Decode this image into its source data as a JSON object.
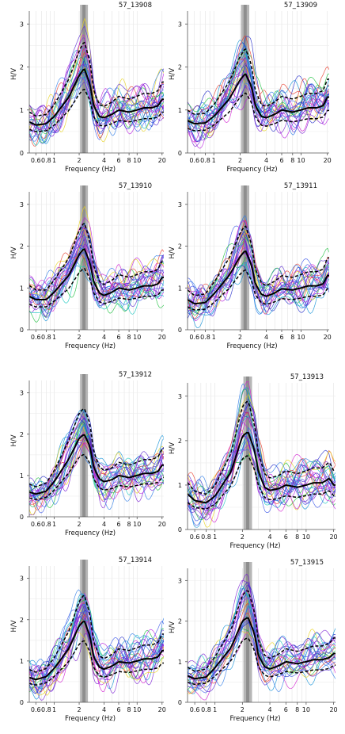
{
  "figure": {
    "panel_count": 8,
    "layout": "4 rows x 2 columns"
  },
  "chart_data": [
    {
      "type": "line",
      "title": "57_13908",
      "xlabel": "Frequency (Hz)",
      "ylabel": "H/V",
      "x_scale": "log",
      "xlim": [
        0.5,
        21
      ],
      "ylim": [
        0,
        3.3
      ],
      "x_tick_labels": [
        "0.6",
        "0.8",
        "1",
        "2",
        "4",
        "6",
        "8",
        "10",
        "20"
      ],
      "y_tick_labels": [
        "0",
        "1",
        "2",
        "3"
      ],
      "grid": true,
      "peak_band_hz": [
        2.05,
        2.55
      ],
      "x": [
        0.5,
        0.6,
        0.8,
        1,
        1.5,
        2,
        2.3,
        2.7,
        3,
        3.5,
        4,
        5,
        6,
        8,
        10,
        12,
        15,
        18,
        20
      ],
      "series": [
        {
          "values": [
            0.72,
            0.65,
            0.68,
            0.85,
            1.3,
            1.8,
            1.97,
            1.6,
            1.1,
            0.85,
            0.82,
            0.9,
            1.0,
            0.95,
            1.0,
            1.05,
            1.05,
            1.1,
            1.25
          ]
        }
      ]
    },
    {
      "type": "line",
      "title": "57_13909",
      "xlabel": "Frequency (Hz)",
      "ylabel": "H/V",
      "x_scale": "log",
      "xlim": [
        0.5,
        21
      ],
      "ylim": [
        0,
        3.3
      ],
      "x_tick_labels": [
        "0.6",
        "0.8",
        "1",
        "2",
        "4",
        "6",
        "8",
        "10",
        "20"
      ],
      "y_tick_labels": [
        "0",
        "1",
        "2",
        "3"
      ],
      "grid": true,
      "peak_band_hz": [
        2.05,
        2.55
      ],
      "x": [
        0.5,
        0.6,
        0.8,
        1,
        1.5,
        2,
        2.3,
        2.7,
        3,
        3.5,
        4,
        5,
        6,
        8,
        10,
        12,
        15,
        18,
        20
      ],
      "series": [
        {
          "values": [
            0.75,
            0.68,
            0.7,
            0.85,
            1.25,
            1.7,
            1.85,
            1.55,
            1.1,
            0.85,
            0.82,
            0.9,
            1.0,
            0.95,
            1.0,
            1.05,
            1.05,
            1.1,
            1.3
          ]
        }
      ]
    },
    {
      "type": "line",
      "title": "57_13910",
      "xlabel": "Frequency (Hz)",
      "ylabel": "H/V",
      "x_scale": "log",
      "xlim": [
        0.5,
        21
      ],
      "ylim": [
        0,
        3.3
      ],
      "x_tick_labels": [
        "0.6",
        "0.8",
        "1",
        "2",
        "4",
        "6",
        "8",
        "10",
        "20"
      ],
      "y_tick_labels": [
        "0",
        "1",
        "2",
        "3"
      ],
      "grid": true,
      "peak_band_hz": [
        2.05,
        2.55
      ],
      "x": [
        0.5,
        0.6,
        0.8,
        1,
        1.5,
        2,
        2.3,
        2.7,
        3,
        3.5,
        4,
        5,
        6,
        8,
        10,
        12,
        15,
        18,
        20
      ],
      "series": [
        {
          "values": [
            0.8,
            0.72,
            0.72,
            0.9,
            1.3,
            1.8,
            1.95,
            1.6,
            1.15,
            0.88,
            0.82,
            0.9,
            1.0,
            0.95,
            1.0,
            1.05,
            1.05,
            1.1,
            1.25
          ]
        }
      ]
    },
    {
      "type": "line",
      "title": "57_13911",
      "xlabel": "Frequency (Hz)",
      "ylabel": "H/V",
      "x_scale": "log",
      "xlim": [
        0.5,
        21
      ],
      "ylim": [
        0,
        3.3
      ],
      "x_tick_labels": [
        "0.6",
        "0.8",
        "1",
        "2",
        "4",
        "6",
        "8",
        "10",
        "20"
      ],
      "y_tick_labels": [
        "0",
        "1",
        "2",
        "3"
      ],
      "grid": true,
      "peak_band_hz": [
        2.05,
        2.55
      ],
      "x": [
        0.5,
        0.6,
        0.8,
        1,
        1.5,
        2,
        2.3,
        2.7,
        3,
        3.5,
        4,
        5,
        6,
        8,
        10,
        12,
        15,
        18,
        20
      ],
      "series": [
        {
          "values": [
            0.72,
            0.62,
            0.65,
            0.85,
            1.3,
            1.75,
            1.9,
            1.55,
            1.1,
            0.85,
            0.8,
            0.88,
            0.98,
            0.95,
            1.0,
            1.05,
            1.05,
            1.1,
            1.3
          ]
        }
      ]
    },
    {
      "type": "line",
      "title": "57_13912",
      "xlabel": "Frequency (Hz)",
      "ylabel": "H/V",
      "x_scale": "log",
      "xlim": [
        0.5,
        21
      ],
      "ylim": [
        0,
        3.3
      ],
      "x_tick_labels": [
        "0.6",
        "0.8",
        "1",
        "2",
        "4",
        "6",
        "8",
        "10",
        "20"
      ],
      "y_tick_labels": [
        "0",
        "1",
        "2",
        "3"
      ],
      "grid": true,
      "peak_band_hz": [
        2.05,
        2.55
      ],
      "x": [
        0.5,
        0.6,
        0.8,
        1,
        1.5,
        2,
        2.3,
        2.7,
        3,
        3.5,
        4,
        5,
        6,
        8,
        10,
        12,
        15,
        18,
        20
      ],
      "series": [
        {
          "values": [
            0.6,
            0.55,
            0.62,
            0.85,
            1.4,
            1.9,
            2.0,
            1.7,
            1.2,
            0.92,
            0.85,
            0.9,
            1.0,
            0.95,
            1.0,
            1.05,
            1.05,
            1.1,
            1.25
          ]
        }
      ]
    },
    {
      "type": "line",
      "title": "57_13913",
      "xlabel": "Frequency (Hz)",
      "ylabel": "H/V",
      "x_scale": "log",
      "xlim": [
        0.5,
        21
      ],
      "ylim": [
        0,
        3.3
      ],
      "x_tick_labels": [
        "0.6",
        "0.8",
        "1",
        "2",
        "4",
        "6",
        "8",
        "10",
        "20"
      ],
      "y_tick_labels": [
        "0",
        "1",
        "2",
        "3"
      ],
      "grid": true,
      "peak_band_hz": [
        2.05,
        2.55
      ],
      "x": [
        0.5,
        0.6,
        0.8,
        1,
        1.5,
        2,
        2.3,
        2.7,
        3,
        3.5,
        4,
        5,
        6,
        8,
        10,
        12,
        15,
        18,
        20
      ],
      "series": [
        {
          "values": [
            0.8,
            0.65,
            0.6,
            0.75,
            1.3,
            2.1,
            2.2,
            1.8,
            1.3,
            0.95,
            0.88,
            0.92,
            1.0,
            0.95,
            1.0,
            1.05,
            1.05,
            1.15,
            1.0
          ]
        }
      ]
    },
    {
      "type": "line",
      "title": "57_13914",
      "xlabel": "Frequency (Hz)",
      "ylabel": "H/V",
      "x_scale": "log",
      "xlim": [
        0.5,
        21
      ],
      "ylim": [
        0,
        3.3
      ],
      "x_tick_labels": [
        "0.6",
        "0.8",
        "1",
        "2",
        "4",
        "6",
        "8",
        "10",
        "20"
      ],
      "y_tick_labels": [
        "0",
        "1",
        "2",
        "3"
      ],
      "grid": true,
      "peak_band_hz": [
        2.05,
        2.55
      ],
      "x": [
        0.5,
        0.6,
        0.8,
        1,
        1.5,
        2,
        2.3,
        2.7,
        3,
        3.5,
        4,
        5,
        6,
        8,
        10,
        12,
        15,
        18,
        20
      ],
      "series": [
        {
          "values": [
            0.6,
            0.55,
            0.62,
            0.82,
            1.3,
            1.85,
            1.98,
            1.6,
            1.1,
            0.85,
            0.8,
            0.88,
            0.98,
            0.95,
            1.0,
            1.05,
            1.05,
            1.1,
            1.25
          ]
        }
      ]
    },
    {
      "type": "line",
      "title": "57_13915",
      "xlabel": "Frequency (Hz)",
      "ylabel": "H/V",
      "x_scale": "log",
      "xlim": [
        0.5,
        21
      ],
      "ylim": [
        0,
        3.3
      ],
      "x_tick_labels": [
        "0.6",
        "0.8",
        "1",
        "2",
        "4",
        "6",
        "8",
        "10",
        "20"
      ],
      "y_tick_labels": [
        "0",
        "1",
        "2",
        "3"
      ],
      "grid": true,
      "peak_band_hz": [
        2.05,
        2.55
      ],
      "x": [
        0.5,
        0.6,
        0.8,
        1,
        1.5,
        2,
        2.3,
        2.7,
        3,
        3.5,
        4,
        5,
        6,
        8,
        10,
        12,
        15,
        18,
        20
      ],
      "series": [
        {
          "values": [
            0.65,
            0.58,
            0.62,
            0.85,
            1.35,
            2.0,
            2.1,
            1.7,
            1.15,
            0.88,
            0.82,
            0.9,
            1.0,
            0.95,
            1.0,
            1.05,
            1.05,
            1.1,
            1.2
          ]
        }
      ]
    }
  ]
}
